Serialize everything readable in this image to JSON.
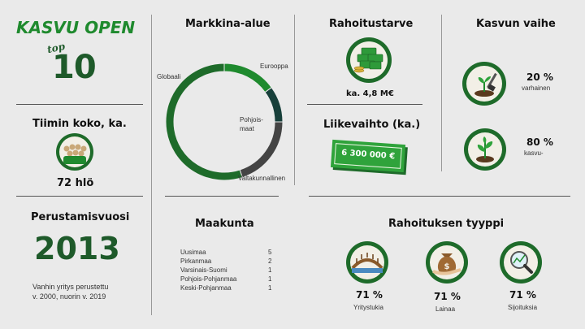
{
  "brand": {
    "title": "KASVU OPEN",
    "top_small": "top",
    "top_number": "10"
  },
  "team": {
    "heading": "Tiimin koko, ka.",
    "value": "72 hlö"
  },
  "founding": {
    "heading": "Perustamisvuosi",
    "year": "2013",
    "note_line1": "Vanhin yritys perustettu",
    "note_line2": "v. 2000, nuorin v. 2019"
  },
  "market": {
    "heading": "Markkina-alue",
    "labels": {
      "globaali": "Globaali",
      "eurooppa": "Eurooppa",
      "pohjoismaat_1": "Pohjois-",
      "pohjoismaat_2": "maat",
      "valtakunnallinen": "Valtakunnallinen"
    }
  },
  "chart_data": {
    "type": "pie",
    "categories": [
      "Eurooppa",
      "Pohjoismaat",
      "Valtakunnallinen",
      "Globaali"
    ],
    "values": [
      15,
      10,
      20,
      55
    ],
    "colors": [
      "#1f8a2e",
      "#173f3a",
      "#444444",
      "#1e6b2a"
    ],
    "title": "Markkina-alue"
  },
  "region": {
    "heading": "Maakunta",
    "rows": [
      {
        "name": "Uusimaa",
        "count": "5"
      },
      {
        "name": "Pirkanmaa",
        "count": "2"
      },
      {
        "name": "Varsinais-Suomi",
        "count": "1"
      },
      {
        "name": "Pohjois-Pohjanmaa",
        "count": "1"
      },
      {
        "name": "Keski-Pohjanmaa",
        "count": "1"
      }
    ]
  },
  "funding_need": {
    "heading": "Rahoitustarve",
    "value": "ka. 4,8 M€"
  },
  "revenue": {
    "heading": "Liikevaihto (ka.)",
    "value": "6 300 000 €"
  },
  "growth": {
    "heading": "Kasvun vaihe",
    "stages": [
      {
        "percent": "20 %",
        "label": "varhainen"
      },
      {
        "percent": "80 %",
        "label": "kasvu-"
      }
    ]
  },
  "funding_type": {
    "heading": "Rahoituksen tyyppi",
    "items": [
      {
        "percent": "71 %",
        "label": "Yritystukia"
      },
      {
        "percent": "71 %",
        "label": "Lainaa"
      },
      {
        "percent": "71 %",
        "label": "Sijoituksia"
      }
    ]
  },
  "colors": {
    "accent": "#1f8a2e",
    "dark": "#173f3a",
    "background": "#eaeaea"
  },
  "icons": [
    "team-icon",
    "money-stack-icon",
    "banknote-icon",
    "seedling-icon",
    "sprout-icon",
    "bridge-icon",
    "money-bag-icon",
    "magnifier-chart-icon"
  ]
}
